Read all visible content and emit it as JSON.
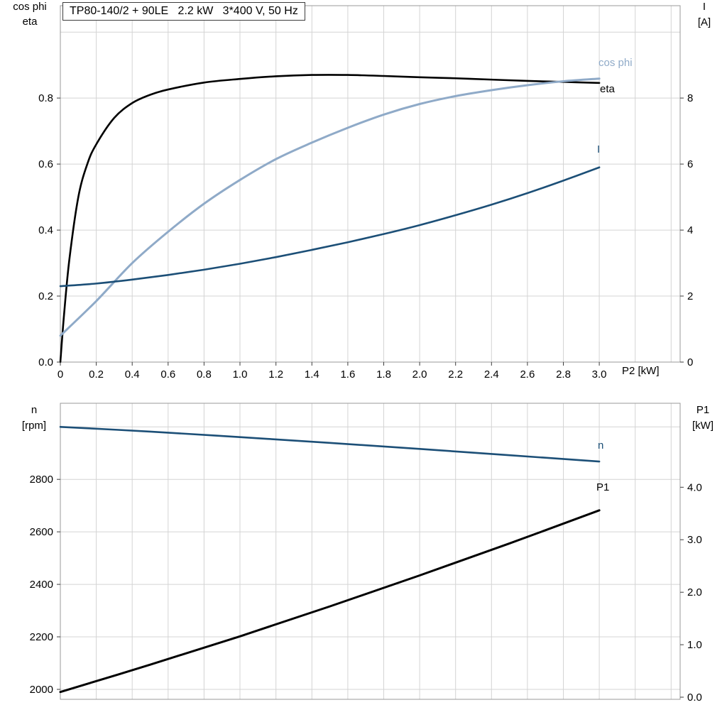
{
  "title": "TP80-140/2 + 90LE   2.2 kW   3*400 V, 50 Hz",
  "colors": {
    "eta": "#000000",
    "cos_phi": "#8faac8",
    "current": "#1c4f77",
    "n": "#1c4f77",
    "p1": "#000000",
    "grid": "#d4d4d4",
    "frame": "#999999",
    "tick": "#3c3c3c",
    "text": "#000000"
  },
  "axis_labels": {
    "top_left_line1": "cos phi",
    "top_left_line2": "eta",
    "top_right_line1": "I",
    "top_right_line2": "[A]",
    "x_label": "P2 [kW]",
    "bottom_left_line1": "n",
    "bottom_left_line2": "[rpm]",
    "bottom_right_line1": "P1",
    "bottom_right_line2": "[kW]"
  },
  "curve_labels": {
    "cos_phi": "cos phi",
    "eta": "eta",
    "current": "I",
    "n": "n",
    "p1": "P1"
  },
  "chart_data": [
    {
      "type": "line",
      "name": "motor-electrical-curves",
      "x": {
        "min": 0,
        "max": 3.45,
        "grid_step": 0.2,
        "label": "P2 [kW]",
        "ticks": [
          0,
          0.2,
          0.4,
          0.6,
          0.8,
          1.0,
          1.2,
          1.4,
          1.6,
          1.8,
          2.0,
          2.2,
          2.4,
          2.6,
          2.8,
          3.0
        ],
        "tick_labels": [
          "0",
          "0.2",
          "0.4",
          "0.6",
          "0.8",
          "1.0",
          "1.2",
          "1.4",
          "1.6",
          "1.8",
          "2.0",
          "2.2",
          "2.4",
          "2.6",
          "2.8",
          "3.0"
        ],
        "show_tick_labels": true
      },
      "y_left": {
        "min": 0,
        "max": 1.08,
        "label": "cos phi / eta",
        "ticks": [
          0,
          0.2,
          0.4,
          0.6,
          0.8
        ],
        "tick_labels": [
          "0.0",
          "0.2",
          "0.4",
          "0.6",
          "0.8"
        ],
        "grid": [
          0.2,
          0.4,
          0.6,
          0.8,
          1.0
        ]
      },
      "y_right": {
        "min": 0,
        "max": 10.8,
        "label": "I [A]",
        "ticks": [
          0,
          2,
          4,
          6,
          8
        ],
        "tick_labels": [
          "0",
          "2",
          "4",
          "6",
          "8"
        ]
      },
      "series": [
        {
          "name": "eta",
          "axis": "left",
          "color_key": "eta",
          "width": 2.6,
          "points": [
            [
              0,
              0
            ],
            [
              0.02,
              0.14
            ],
            [
              0.05,
              0.31
            ],
            [
              0.1,
              0.5
            ],
            [
              0.15,
              0.6
            ],
            [
              0.2,
              0.66
            ],
            [
              0.3,
              0.74
            ],
            [
              0.4,
              0.785
            ],
            [
              0.5,
              0.81
            ],
            [
              0.6,
              0.826
            ],
            [
              0.8,
              0.847
            ],
            [
              1.0,
              0.858
            ],
            [
              1.2,
              0.866
            ],
            [
              1.4,
              0.87
            ],
            [
              1.6,
              0.87
            ],
            [
              1.8,
              0.867
            ],
            [
              2.0,
              0.863
            ],
            [
              2.2,
              0.86
            ],
            [
              2.4,
              0.856
            ],
            [
              2.6,
              0.852
            ],
            [
              2.8,
              0.849
            ],
            [
              3.0,
              0.846
            ]
          ]
        },
        {
          "name": "cos phi",
          "axis": "left",
          "color_key": "cos_phi",
          "width": 3,
          "points": [
            [
              0,
              0.08
            ],
            [
              0.2,
              0.185
            ],
            [
              0.4,
              0.3
            ],
            [
              0.6,
              0.395
            ],
            [
              0.8,
              0.48
            ],
            [
              1.0,
              0.552
            ],
            [
              1.2,
              0.615
            ],
            [
              1.4,
              0.665
            ],
            [
              1.6,
              0.71
            ],
            [
              1.8,
              0.75
            ],
            [
              2.0,
              0.782
            ],
            [
              2.2,
              0.806
            ],
            [
              2.4,
              0.824
            ],
            [
              2.6,
              0.839
            ],
            [
              2.8,
              0.851
            ],
            [
              3.0,
              0.859
            ]
          ]
        },
        {
          "name": "I",
          "axis": "right",
          "color_key": "current",
          "width": 2.6,
          "points": [
            [
              0,
              2.3
            ],
            [
              0.2,
              2.38
            ],
            [
              0.4,
              2.5
            ],
            [
              0.6,
              2.64
            ],
            [
              0.8,
              2.8
            ],
            [
              1.0,
              2.98
            ],
            [
              1.2,
              3.18
            ],
            [
              1.4,
              3.4
            ],
            [
              1.6,
              3.63
            ],
            [
              1.8,
              3.88
            ],
            [
              2.0,
              4.15
            ],
            [
              2.2,
              4.45
            ],
            [
              2.4,
              4.77
            ],
            [
              2.6,
              5.12
            ],
            [
              2.8,
              5.5
            ],
            [
              3.0,
              5.9
            ]
          ]
        }
      ]
    },
    {
      "type": "line",
      "name": "speed-and-input-power-curves",
      "x": {
        "min": 0,
        "max": 3.45,
        "grid_step": 0.2,
        "label": "",
        "ticks": [],
        "tick_labels": [],
        "show_tick_labels": false
      },
      "y_left": {
        "min": 1962,
        "max": 3090,
        "label": "n [rpm]",
        "ticks": [
          2000,
          2200,
          2400,
          2600,
          2800
        ],
        "tick_labels": [
          "2000",
          "2200",
          "2400",
          "2600",
          "2800"
        ],
        "grid": [
          2000,
          2200,
          2400,
          2600,
          2800,
          3000
        ]
      },
      "y_right": {
        "min": -0.04,
        "max": 5.6,
        "label": "P1 [kW]",
        "ticks": [
          0,
          1,
          2,
          3,
          4
        ],
        "tick_labels": [
          "0.0",
          "1.0",
          "2.0",
          "3.0",
          "4.0"
        ]
      },
      "series": [
        {
          "name": "n",
          "axis": "left",
          "color_key": "n",
          "width": 2.6,
          "points": [
            [
              0,
              3000
            ],
            [
              0.5,
              2982
            ],
            [
              1.0,
              2961
            ],
            [
              1.5,
              2939
            ],
            [
              2.0,
              2916
            ],
            [
              2.5,
              2892
            ],
            [
              3.0,
              2868
            ]
          ]
        },
        {
          "name": "P1",
          "axis": "right",
          "color_key": "p1",
          "width": 3,
          "points": [
            [
              0,
              0.1
            ],
            [
              0.5,
              0.62
            ],
            [
              1.0,
              1.16
            ],
            [
              1.5,
              1.73
            ],
            [
              2.0,
              2.32
            ],
            [
              2.5,
              2.93
            ],
            [
              3.0,
              3.56
            ]
          ]
        }
      ]
    }
  ]
}
